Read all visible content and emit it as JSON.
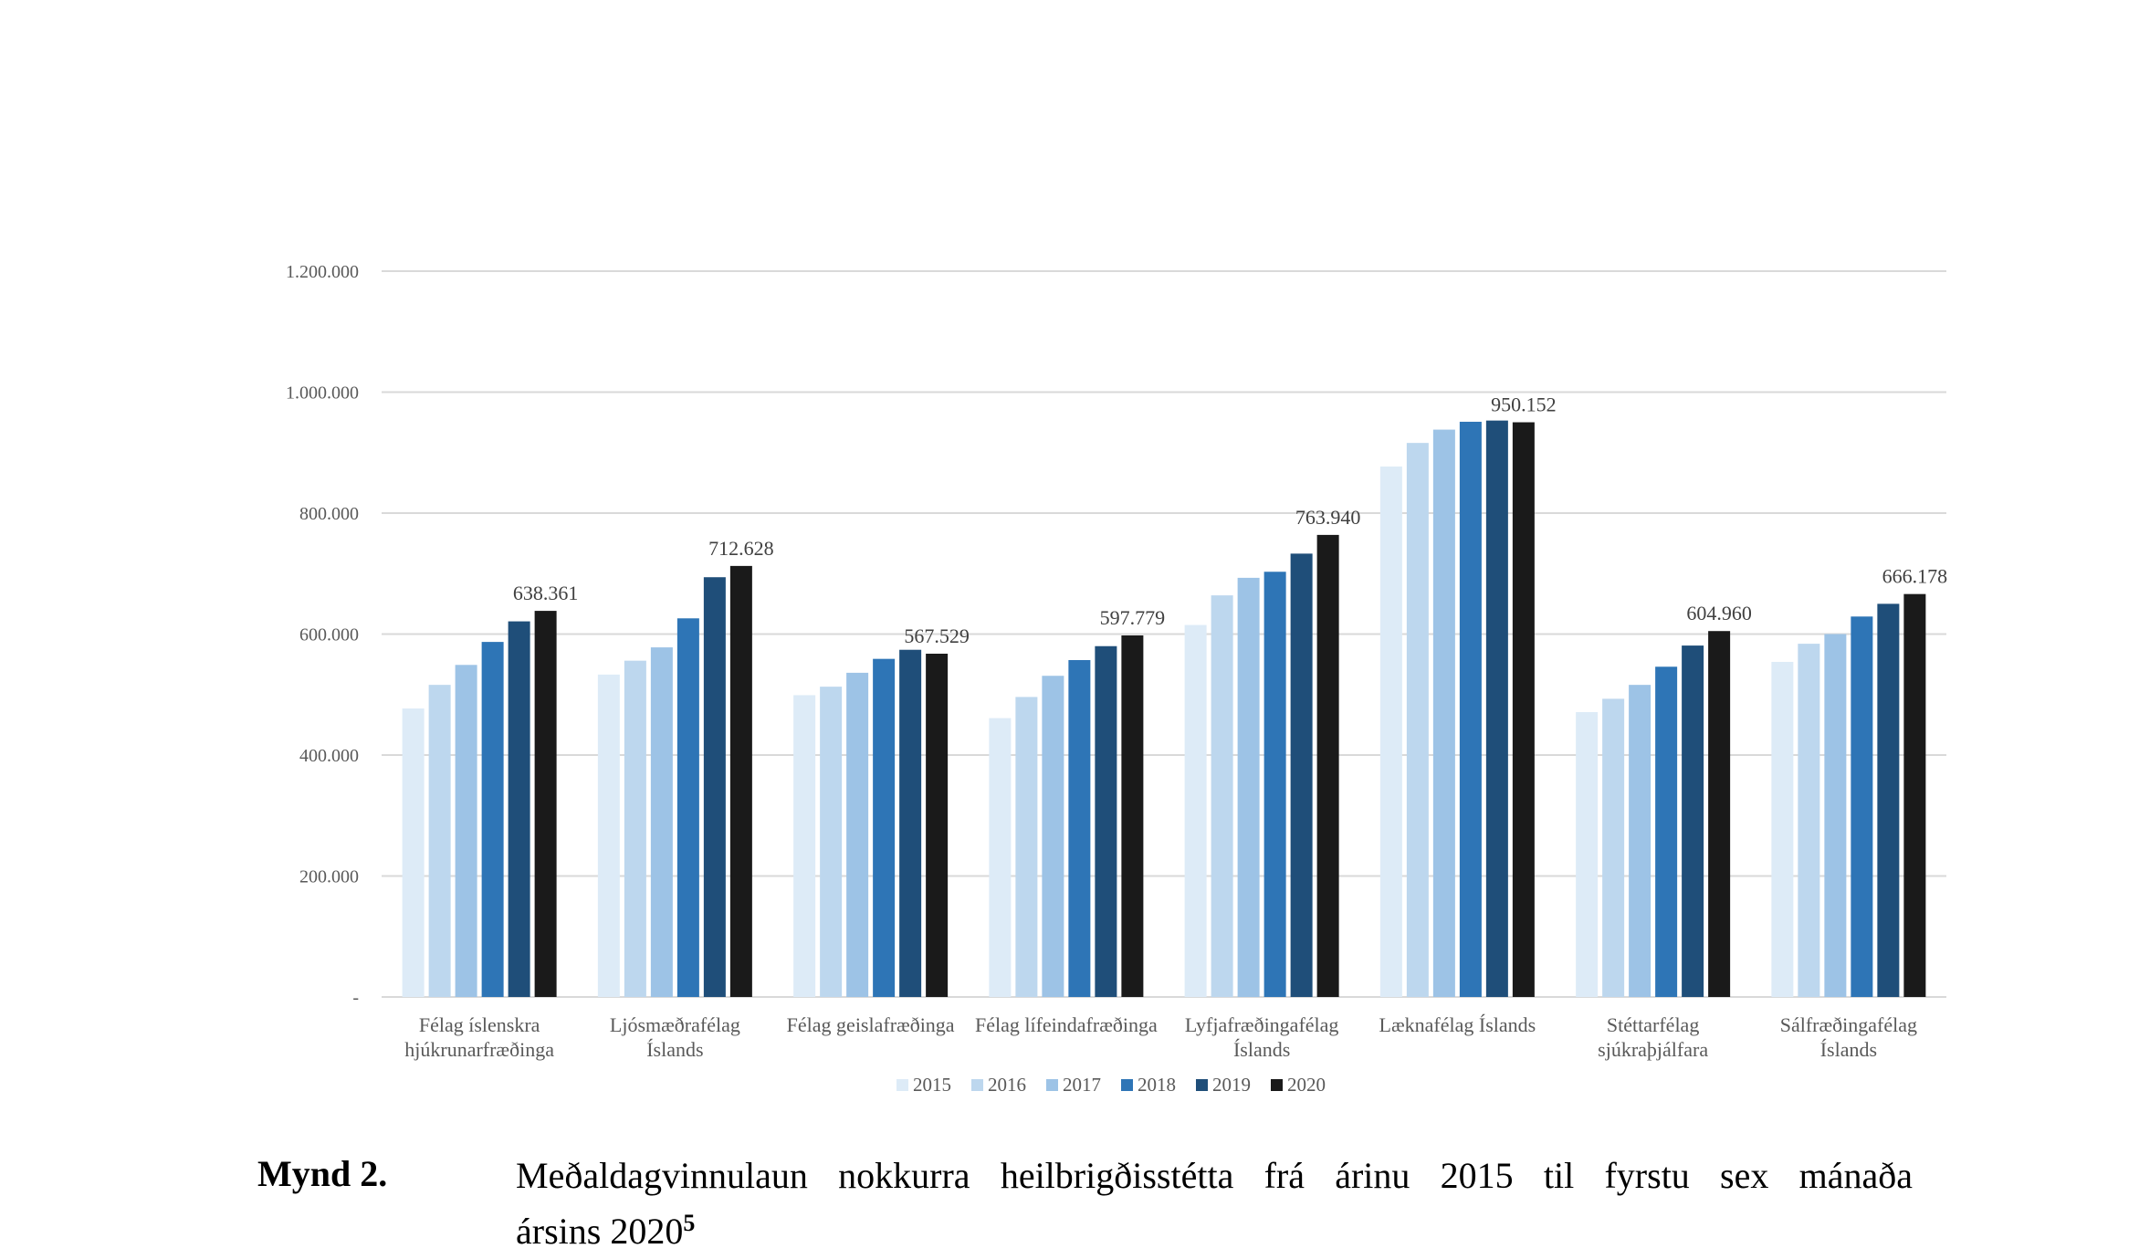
{
  "chart_data": {
    "type": "bar",
    "title": "",
    "xlabel": "",
    "ylabel": "",
    "ylim": [
      0,
      1200000
    ],
    "yticks": [
      {
        "value": 0,
        "label": "-"
      },
      {
        "value": 200000,
        "label": "200.000"
      },
      {
        "value": 400000,
        "label": "400.000"
      },
      {
        "value": 600000,
        "label": "600.000"
      },
      {
        "value": 800000,
        "label": "800.000"
      },
      {
        "value": 1000000,
        "label": "1.000.000"
      },
      {
        "value": 1200000,
        "label": "1.200.000"
      }
    ],
    "grid": true,
    "legend_position": "bottom",
    "categories": [
      [
        "Félag íslenskra",
        "hjúkrunarfræðinga"
      ],
      [
        "Ljósmæðrafélag",
        "Íslands"
      ],
      [
        "Félag geislafræðinga"
      ],
      [
        "Félag lífeindafræðinga"
      ],
      [
        "Lyfjafræðingafélag",
        "Íslands"
      ],
      [
        "Læknafélag Íslands"
      ],
      [
        "Stéttarfélag",
        "sjúkraþjálfara"
      ],
      [
        "Sálfræðingafélag",
        "Íslands"
      ]
    ],
    "series": [
      {
        "name": "2015",
        "color": "#ddebf7",
        "values": [
          477000,
          533000,
          499000,
          461000,
          615000,
          877000,
          471000,
          554000
        ]
      },
      {
        "name": "2016",
        "color": "#bdd7ee",
        "values": [
          516000,
          556000,
          513000,
          496000,
          664000,
          916000,
          493000,
          584000
        ]
      },
      {
        "name": "2017",
        "color": "#9dc3e6",
        "values": [
          549000,
          578000,
          536000,
          531000,
          693000,
          938000,
          516000,
          600000
        ]
      },
      {
        "name": "2018",
        "color": "#2e75b6",
        "values": [
          587000,
          626000,
          559000,
          557000,
          703000,
          951000,
          546000,
          629000
        ]
      },
      {
        "name": "2019",
        "color": "#1f4e79",
        "values": [
          621000,
          694000,
          574000,
          580000,
          733000,
          953000,
          581000,
          650000
        ]
      },
      {
        "name": "2020",
        "color": "#1a1a1a",
        "values": [
          638361,
          712628,
          567529,
          597779,
          763940,
          950152,
          604960,
          666178
        ]
      }
    ],
    "data_labels": [
      "638.361",
      "712.628",
      "567.529",
      "597.779",
      "763.940",
      "950.152",
      "604.960",
      "666.178"
    ]
  },
  "caption": {
    "label": "Mynd 2.",
    "text_line1": "Meðaldagvinnulaun nokkurra heilbrigðisstétta frá árinu 2015 til fyrstu sex mánaða",
    "text_line2": "ársins 2020",
    "footnote": "5"
  }
}
